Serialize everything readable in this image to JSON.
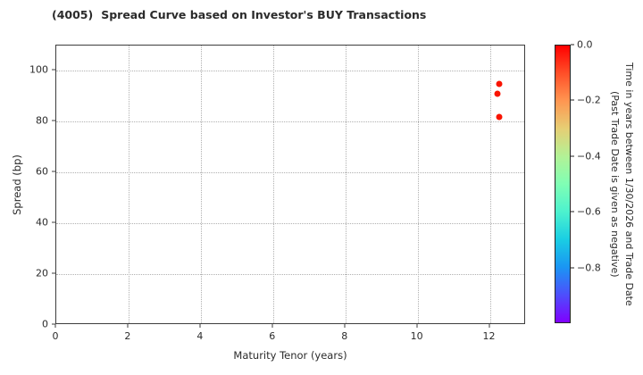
{
  "figure": {
    "title_code": "(4005)",
    "title_text": "Spread Curve based on Investor's BUY Transactions"
  },
  "chart_data": {
    "type": "scatter",
    "title": "(4005)  Spread Curve based on Investor's BUY Transactions",
    "xlabel": "Maturity Tenor (years)",
    "ylabel": "Spread (bp)",
    "xlim": [
      0,
      13
    ],
    "ylim": [
      0,
      110
    ],
    "xticks": [
      0,
      2,
      4,
      6,
      8,
      10,
      12
    ],
    "yticks": [
      0,
      20,
      40,
      60,
      80,
      100
    ],
    "grid": true,
    "grid_style": "dotted",
    "legend": "none",
    "marker_color": "#f91400",
    "points": [
      {
        "x": 12.25,
        "y": 95,
        "time": 0.0
      },
      {
        "x": 12.2,
        "y": 91,
        "time": 0.0
      },
      {
        "x": 12.25,
        "y": 82,
        "time": 0.0
      }
    ],
    "colorbar": {
      "label_line1": "Time in years between 1/30/2026 and Trade Date",
      "label_line2": "(Past Trade Date is given as negative)",
      "tick_labels": [
        "0.0",
        "−0.2",
        "−0.4",
        "−0.6",
        "−0.8"
      ],
      "tick_values": [
        0.0,
        -0.2,
        -0.4,
        -0.6,
        -0.8
      ],
      "vmax": 0.0,
      "vmin": -1.0,
      "colormap": "rainbow",
      "gradient": [
        {
          "pos": 0,
          "color": "#ff0000"
        },
        {
          "pos": 10,
          "color": "#ff4f28"
        },
        {
          "pos": 20,
          "color": "#ff9651"
        },
        {
          "pos": 30,
          "color": "#e6ce74"
        },
        {
          "pos": 40,
          "color": "#b3f296"
        },
        {
          "pos": 50,
          "color": "#80ffb4"
        },
        {
          "pos": 60,
          "color": "#4df2ce"
        },
        {
          "pos": 70,
          "color": "#1acee3"
        },
        {
          "pos": 80,
          "color": "#1a96f3"
        },
        {
          "pos": 90,
          "color": "#4d4ffc"
        },
        {
          "pos": 100,
          "color": "#8000ff"
        }
      ]
    },
    "colors": {
      "text": "#2b2b2b",
      "spine": "#3d3d3d",
      "gridline": "#b0b0b0",
      "background": "#ffffff"
    }
  }
}
